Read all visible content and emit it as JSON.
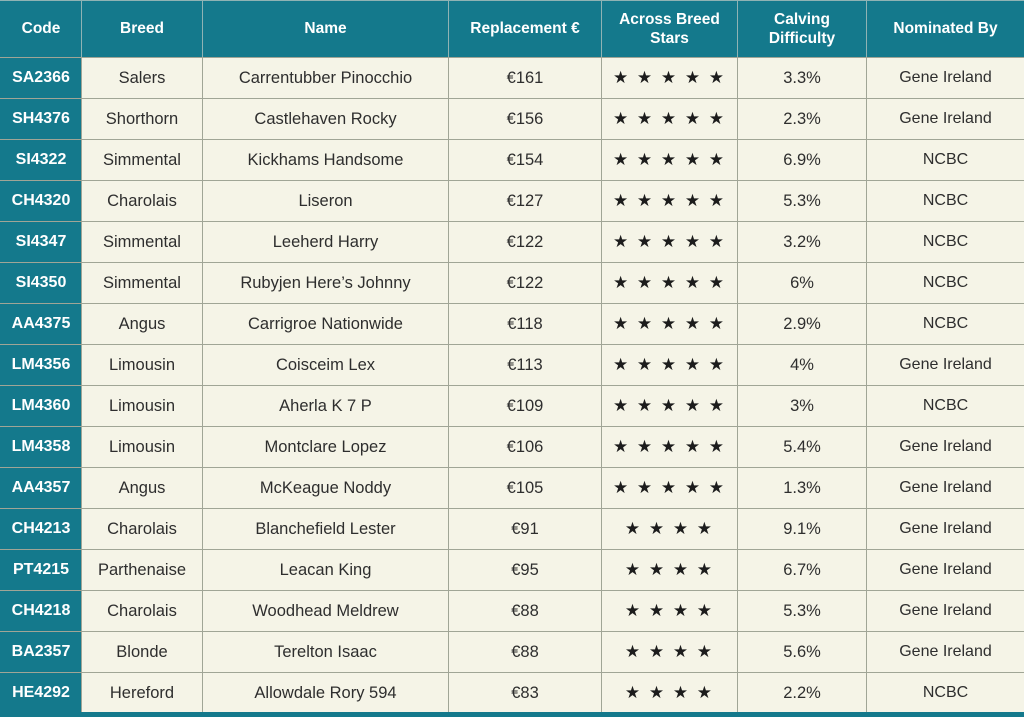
{
  "table": {
    "columns": [
      {
        "key": "code",
        "label": "Code"
      },
      {
        "key": "breed",
        "label": "Breed"
      },
      {
        "key": "name",
        "label": "Name"
      },
      {
        "key": "replacement",
        "label": "Replacement €"
      },
      {
        "key": "stars",
        "label": "Across Breed Stars"
      },
      {
        "key": "calving",
        "label": "Calving Difficulty"
      },
      {
        "key": "nominated",
        "label": "Nominated By"
      }
    ],
    "star_glyph": "★",
    "rows": [
      {
        "code": "SA2366",
        "breed": "Salers",
        "name": "Carrentubber Pinocchio",
        "replacement": "€161",
        "stars": 5,
        "calving": "3.3%",
        "nominated": "Gene Ireland"
      },
      {
        "code": "SH4376",
        "breed": "Shorthorn",
        "name": "Castlehaven Rocky",
        "replacement": "€156",
        "stars": 5,
        "calving": "2.3%",
        "nominated": "Gene Ireland"
      },
      {
        "code": "SI4322",
        "breed": "Simmental",
        "name": "Kickhams Handsome",
        "replacement": "€154",
        "stars": 5,
        "calving": "6.9%",
        "nominated": "NCBC"
      },
      {
        "code": "CH4320",
        "breed": "Charolais",
        "name": "Liseron",
        "replacement": "€127",
        "stars": 5,
        "calving": "5.3%",
        "nominated": "NCBC"
      },
      {
        "code": "SI4347",
        "breed": "Simmental",
        "name": "Leeherd Harry",
        "replacement": "€122",
        "stars": 5,
        "calving": "3.2%",
        "nominated": "NCBC"
      },
      {
        "code": "SI4350",
        "breed": "Simmental",
        "name": "Rubyjen Here’s Johnny",
        "replacement": "€122",
        "stars": 5,
        "calving": "6%",
        "nominated": "NCBC"
      },
      {
        "code": "AA4375",
        "breed": "Angus",
        "name": "Carrigroe Nationwide",
        "replacement": "€118",
        "stars": 5,
        "calving": "2.9%",
        "nominated": "NCBC"
      },
      {
        "code": "LM4356",
        "breed": "Limousin",
        "name": "Coisceim Lex",
        "replacement": "€113",
        "stars": 5,
        "calving": "4%",
        "nominated": "Gene Ireland"
      },
      {
        "code": "LM4360",
        "breed": "Limousin",
        "name": "Aherla K 7 P",
        "replacement": "€109",
        "stars": 5,
        "calving": "3%",
        "nominated": "NCBC"
      },
      {
        "code": "LM4358",
        "breed": "Limousin",
        "name": "Montclare Lopez",
        "replacement": "€106",
        "stars": 5,
        "calving": "5.4%",
        "nominated": "Gene Ireland"
      },
      {
        "code": "AA4357",
        "breed": "Angus",
        "name": "McKeague Noddy",
        "replacement": "€105",
        "stars": 5,
        "calving": "1.3%",
        "nominated": "Gene Ireland"
      },
      {
        "code": "CH4213",
        "breed": "Charolais",
        "name": "Blanchefield Lester",
        "replacement": "€91",
        "stars": 4,
        "calving": "9.1%",
        "nominated": "Gene Ireland"
      },
      {
        "code": "PT4215",
        "breed": "Parthenaise",
        "name": "Leacan King",
        "replacement": "€95",
        "stars": 4,
        "calving": "6.7%",
        "nominated": "Gene Ireland"
      },
      {
        "code": "CH4218",
        "breed": "Charolais",
        "name": "Woodhead Meldrew",
        "replacement": "€88",
        "stars": 4,
        "calving": "5.3%",
        "nominated": "Gene Ireland"
      },
      {
        "code": "BA2357",
        "breed": "Blonde",
        "name": "Terelton Isaac",
        "replacement": "€88",
        "stars": 4,
        "calving": "5.6%",
        "nominated": "Gene Ireland"
      },
      {
        "code": "HE4292",
        "breed": "Hereford",
        "name": "Allowdale Rory 594",
        "replacement": "€83",
        "stars": 4,
        "calving": "2.2%",
        "nominated": "NCBC"
      }
    ]
  },
  "colors": {
    "teal": "#14798c",
    "cream": "#f5f4e7",
    "border": "#a0a596",
    "star": "#1c1c1c"
  }
}
